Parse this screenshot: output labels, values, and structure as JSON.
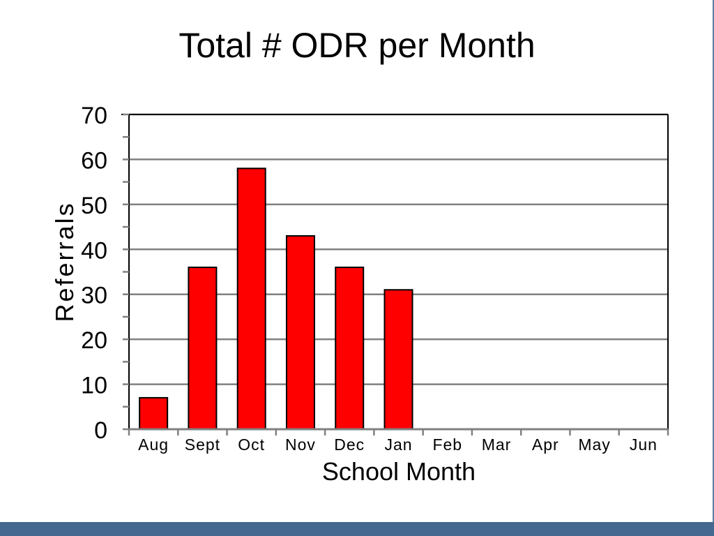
{
  "chart_data": {
    "type": "bar",
    "title": "Total # ODR per Month",
    "xlabel": "School Month",
    "ylabel": "Referrals",
    "categories": [
      "Aug",
      "Sept",
      "Oct",
      "Nov",
      "Dec",
      "Jan",
      "Feb",
      "Mar",
      "Apr",
      "May",
      "Jun"
    ],
    "values": [
      7,
      36,
      58,
      43,
      36,
      31,
      null,
      null,
      null,
      null,
      null
    ],
    "ylim": [
      0,
      70
    ],
    "yticks": [
      "0",
      "10",
      "20",
      "30",
      "40",
      "50",
      "60",
      "70"
    ],
    "grid": true,
    "legend": "none",
    "colors": {
      "bar": "#ff0000",
      "bar_stroke": "#000000",
      "grid": "#808080",
      "footer": "#44688f"
    }
  }
}
